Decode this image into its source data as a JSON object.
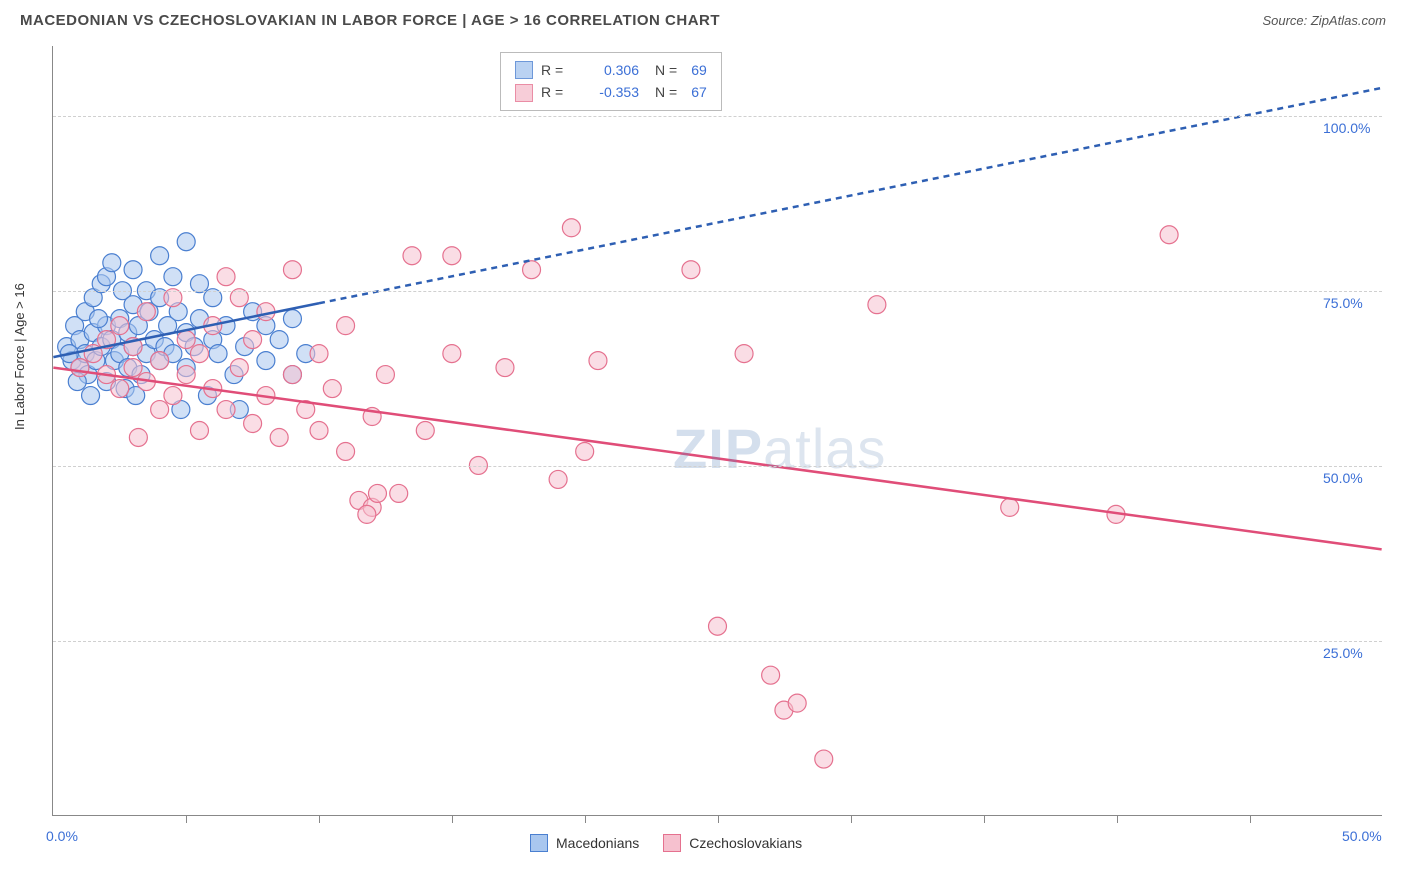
{
  "header": {
    "title": "MACEDONIAN VS CZECHOSLOVAKIAN IN LABOR FORCE | AGE > 16 CORRELATION CHART",
    "source": "Source: ZipAtlas.com"
  },
  "chart": {
    "type": "scatter",
    "ylabel": "In Labor Force | Age > 16",
    "xlim": [
      0,
      50
    ],
    "ylim": [
      0,
      110
    ],
    "x_ticks": [
      0,
      50
    ],
    "x_tick_labels": [
      "0.0%",
      "50.0%"
    ],
    "x_minor_ticks": [
      5,
      10,
      15,
      20,
      25,
      30,
      35,
      40,
      45
    ],
    "y_gridlines": [
      25,
      50,
      75,
      100
    ],
    "y_grid_labels": [
      "25.0%",
      "50.0%",
      "75.0%",
      "100.0%"
    ],
    "background_color": "#ffffff",
    "grid_color": "#d0d0d0",
    "axis_label_color": "#3b6fd6",
    "marker_radius": 9,
    "marker_stroke_width": 1.2,
    "trend_line_width": 2.5,
    "trend_dash": "6,5",
    "series": [
      {
        "name": "Macedonians",
        "fill": "#a9c7ef",
        "stroke": "#4a7fd0",
        "fill_opacity": 0.55,
        "trend_color": "#2e5fb3",
        "trend_solid_end_x": 10,
        "trend": {
          "x1": 0,
          "y1": 65.5,
          "x2": 50,
          "y2": 104
        },
        "R": "0.306",
        "N": "69",
        "points": [
          [
            0.5,
            67
          ],
          [
            0.7,
            65
          ],
          [
            0.8,
            70
          ],
          [
            1.0,
            64
          ],
          [
            1.0,
            68
          ],
          [
            1.2,
            66
          ],
          [
            1.2,
            72
          ],
          [
            1.3,
            63
          ],
          [
            1.5,
            69
          ],
          [
            1.5,
            74
          ],
          [
            1.6,
            65
          ],
          [
            1.8,
            67
          ],
          [
            1.8,
            76
          ],
          [
            2.0,
            70
          ],
          [
            2.0,
            77
          ],
          [
            2.0,
            62
          ],
          [
            2.2,
            68
          ],
          [
            2.2,
            79
          ],
          [
            2.3,
            65
          ],
          [
            2.5,
            66
          ],
          [
            2.5,
            71
          ],
          [
            2.6,
            75
          ],
          [
            2.8,
            64
          ],
          [
            2.8,
            69
          ],
          [
            3.0,
            67
          ],
          [
            3.0,
            73
          ],
          [
            3.0,
            78
          ],
          [
            3.2,
            70
          ],
          [
            3.3,
            63
          ],
          [
            3.5,
            66
          ],
          [
            3.5,
            75
          ],
          [
            3.6,
            72
          ],
          [
            3.8,
            68
          ],
          [
            4.0,
            65
          ],
          [
            4.0,
            74
          ],
          [
            4.0,
            80
          ],
          [
            4.2,
            67
          ],
          [
            4.3,
            70
          ],
          [
            4.5,
            66
          ],
          [
            4.5,
            77
          ],
          [
            4.7,
            72
          ],
          [
            5.0,
            64
          ],
          [
            5.0,
            69
          ],
          [
            5.0,
            82
          ],
          [
            5.3,
            67
          ],
          [
            5.5,
            71
          ],
          [
            5.5,
            76
          ],
          [
            5.8,
            60
          ],
          [
            6.0,
            68
          ],
          [
            6.0,
            74
          ],
          [
            6.2,
            66
          ],
          [
            6.5,
            70
          ],
          [
            6.8,
            63
          ],
          [
            7.0,
            58
          ],
          [
            7.2,
            67
          ],
          [
            7.5,
            72
          ],
          [
            8.0,
            65
          ],
          [
            8.0,
            70
          ],
          [
            8.5,
            68
          ],
          [
            9.0,
            63
          ],
          [
            9.0,
            71
          ],
          [
            9.5,
            66
          ],
          [
            4.8,
            58
          ],
          [
            2.7,
            61
          ],
          [
            3.1,
            60
          ],
          [
            1.4,
            60
          ],
          [
            0.9,
            62
          ],
          [
            1.7,
            71
          ],
          [
            0.6,
            66
          ]
        ]
      },
      {
        "name": "Czechoslovakians",
        "fill": "#f6c1cf",
        "stroke": "#e5718f",
        "fill_opacity": 0.55,
        "trend_color": "#e04d78",
        "trend_solid_end_x": 50,
        "trend": {
          "x1": 0,
          "y1": 64,
          "x2": 50,
          "y2": 38
        },
        "R": "-0.353",
        "N": "67",
        "points": [
          [
            1.0,
            64
          ],
          [
            1.5,
            66
          ],
          [
            2.0,
            63
          ],
          [
            2.0,
            68
          ],
          [
            2.5,
            61
          ],
          [
            2.5,
            70
          ],
          [
            3.0,
            64
          ],
          [
            3.0,
            67
          ],
          [
            3.5,
            62
          ],
          [
            3.5,
            72
          ],
          [
            4.0,
            65
          ],
          [
            4.0,
            58
          ],
          [
            4.5,
            60
          ],
          [
            4.5,
            74
          ],
          [
            5.0,
            63
          ],
          [
            5.0,
            68
          ],
          [
            5.5,
            55
          ],
          [
            5.5,
            66
          ],
          [
            6.0,
            61
          ],
          [
            6.0,
            70
          ],
          [
            6.5,
            58
          ],
          [
            6.5,
            77
          ],
          [
            7.0,
            64
          ],
          [
            7.0,
            74
          ],
          [
            7.5,
            56
          ],
          [
            7.5,
            68
          ],
          [
            8.0,
            60
          ],
          [
            8.0,
            72
          ],
          [
            8.5,
            54
          ],
          [
            9.0,
            63
          ],
          [
            9.0,
            78
          ],
          [
            9.5,
            58
          ],
          [
            10.0,
            55
          ],
          [
            10.0,
            66
          ],
          [
            10.5,
            61
          ],
          [
            11.0,
            52
          ],
          [
            11.0,
            70
          ],
          [
            11.5,
            45
          ],
          [
            12.0,
            57
          ],
          [
            12.0,
            44
          ],
          [
            12.5,
            63
          ],
          [
            13.0,
            46
          ],
          [
            13.5,
            80
          ],
          [
            14.0,
            55
          ],
          [
            15.0,
            66
          ],
          [
            15.0,
            80
          ],
          [
            16.0,
            50
          ],
          [
            17.0,
            64
          ],
          [
            18.0,
            78
          ],
          [
            19.0,
            48
          ],
          [
            19.5,
            84
          ],
          [
            20.0,
            52
          ],
          [
            20.5,
            65
          ],
          [
            24.0,
            78
          ],
          [
            25.0,
            27
          ],
          [
            26.0,
            66
          ],
          [
            27.0,
            20
          ],
          [
            27.5,
            15
          ],
          [
            28.0,
            16
          ],
          [
            29.0,
            8
          ],
          [
            31.0,
            73
          ],
          [
            36.0,
            44
          ],
          [
            40.0,
            43
          ],
          [
            42.0,
            83
          ],
          [
            11.8,
            43
          ],
          [
            12.2,
            46
          ],
          [
            3.2,
            54
          ]
        ]
      }
    ]
  },
  "legend_top": {
    "r_label": "R =",
    "n_label": "N ="
  },
  "legend_bottom": {
    "items": [
      "Macedonians",
      "Czechoslovakians"
    ]
  },
  "watermark": {
    "zip": "ZIP",
    "atlas": "atlas"
  }
}
